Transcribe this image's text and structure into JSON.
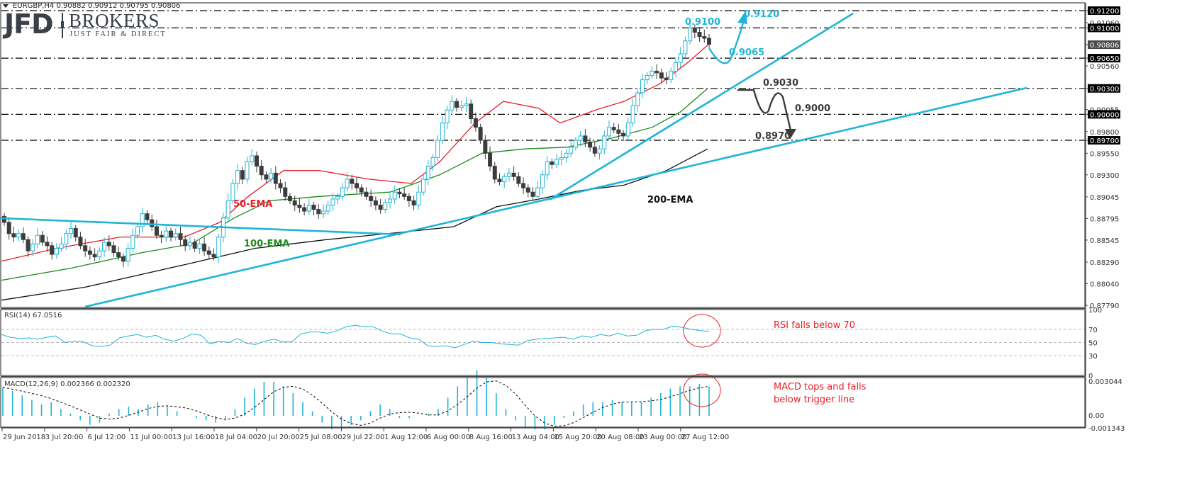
{
  "header": {
    "symbol": "EURGBP,H4",
    "ohlc": "0.90882 0.90912 0.90795 0.90806",
    "full_text": "EURGBP,H4  0.90882 0.90912 0.90795 0.90806"
  },
  "logo": {
    "brand": "JFD",
    "name": "BROKERS",
    "tagline": "JUST FAIR & DIRECT"
  },
  "colors": {
    "bull": "#1fb5d6",
    "bear": "#3c3c3c",
    "trendline": "#1fb5d6",
    "ema50": "#e8202a",
    "ema100": "#1a8a1a",
    "ema200": "#111111",
    "level_line": "#000000",
    "note_red": "#e8202a",
    "projection_dark": "#3c3c3c",
    "projection_blue": "#1fb5d6",
    "axis_tag_bg": "#000000",
    "current_price_tag_bg": "#4a4a4a",
    "rsi_line": "#1fb5d6",
    "macd_hist": "#1fb5d6",
    "macd_signal": "#000000"
  },
  "annotations": {
    "level_9100": "0.9100",
    "level_9120": "0.9120",
    "level_9065": "0.9065",
    "level_9030": "0.9030",
    "level_9000": "0.9000",
    "level_8970": "0.8970",
    "ema50_label": "50-EMA",
    "ema100_label": "100-EMA",
    "ema200_label": "200-EMA",
    "rsi_note": "RSI falls below 70",
    "macd_note_line1": "MACD tops and falls",
    "macd_note_line2": "below trigger line"
  },
  "chart_data": [
    {
      "type": "candlestick",
      "title": "EURGBP,H4",
      "ohlc_last": {
        "open": 0.90882,
        "high": 0.90912,
        "low": 0.90795,
        "close": 0.90806
      },
      "y_axis": {
        "ticks": [
          0.912,
          0.9106,
          0.91,
          0.90806,
          0.9065,
          0.9056,
          0.903,
          0.90055,
          0.9,
          0.898,
          0.897,
          0.8955,
          0.893,
          0.89045,
          0.88795,
          0.88545,
          0.8829,
          0.8804,
          0.8779
        ],
        "highlighted_ticks": [
          0.912,
          0.91,
          0.9065,
          0.903,
          0.9,
          0.897
        ],
        "current_price_tag": 0.90806,
        "range": [
          0.8779,
          0.9125
        ]
      },
      "x_axis": {
        "ticks": [
          "29 Jun 2018",
          "3 Jul 20:00",
          "6 Jul 12:00",
          "11 Jul 00:00",
          "13 Jul 16:00",
          "18 Jul 04:00",
          "20 Jul 20:00",
          "25 Jul 08:00",
          "29 Jul 22:00",
          "1 Aug 12:00",
          "6 Aug 00:00",
          "8 Aug 16:00",
          "13 Aug 04:00",
          "15 Aug 20:00",
          "20 Aug 08:00",
          "23 Aug 00:00",
          "27 Aug 12:00"
        ]
      },
      "horizontal_levels": [
        0.912,
        0.91,
        0.9065,
        0.903,
        0.9,
        0.897
      ],
      "indicators": [
        "50-EMA",
        "100-EMA",
        "200-EMA"
      ],
      "approx_close_path": [
        0.8875,
        0.8862,
        0.8858,
        0.8862,
        0.8855,
        0.8842,
        0.885,
        0.886,
        0.8852,
        0.8848,
        0.8838,
        0.8845,
        0.885,
        0.8862,
        0.8868,
        0.8858,
        0.8848,
        0.8842,
        0.8838,
        0.8835,
        0.8842,
        0.8852,
        0.8848,
        0.884,
        0.8835,
        0.883,
        0.8845,
        0.886,
        0.887,
        0.8885,
        0.8878,
        0.887,
        0.886,
        0.8858,
        0.8865,
        0.8858,
        0.8862,
        0.8855,
        0.8848,
        0.8852,
        0.8845,
        0.885,
        0.8842,
        0.8838,
        0.8835,
        0.8858,
        0.888,
        0.89,
        0.892,
        0.8935,
        0.8925,
        0.8945,
        0.8952,
        0.894,
        0.893,
        0.8925,
        0.8932,
        0.892,
        0.8915,
        0.8905,
        0.89,
        0.8895,
        0.8892,
        0.8888,
        0.8895,
        0.889,
        0.8885,
        0.8888,
        0.8895,
        0.8902,
        0.8905,
        0.8915,
        0.8925,
        0.892,
        0.8915,
        0.891,
        0.8905,
        0.89,
        0.8895,
        0.889,
        0.8898,
        0.8902,
        0.891,
        0.8908,
        0.8905,
        0.89,
        0.8895,
        0.891,
        0.8925,
        0.894,
        0.895,
        0.897,
        0.899,
        0.9005,
        0.9015,
        0.9008,
        0.901,
        0.9012,
        0.8995,
        0.8985,
        0.897,
        0.8955,
        0.894,
        0.8925,
        0.8922,
        0.8928,
        0.8932,
        0.8928,
        0.892,
        0.8915,
        0.891,
        0.8905,
        0.8915,
        0.893,
        0.8945,
        0.8942,
        0.8948,
        0.895,
        0.8955,
        0.8962,
        0.897,
        0.8975,
        0.8968,
        0.8962,
        0.8955,
        0.896,
        0.8975,
        0.8985,
        0.8982,
        0.8978,
        0.8975,
        0.899,
        0.901,
        0.9025,
        0.904,
        0.9045,
        0.905,
        0.9048,
        0.9042,
        0.904,
        0.905,
        0.906,
        0.907,
        0.9085,
        0.91,
        0.9095,
        0.909,
        0.9088,
        0.9081
      ]
    },
    {
      "type": "line",
      "title": "RSI(14) 67.0516",
      "value": 67.0516,
      "y_axis": {
        "ticks": [
          100,
          70,
          50,
          30,
          0
        ],
        "range": [
          0,
          100
        ]
      },
      "reference_lines": [
        70,
        50,
        30
      ],
      "approx_values": [
        62,
        58,
        56,
        57,
        55,
        58,
        60,
        50,
        52,
        51,
        45,
        44,
        46,
        57,
        60,
        62,
        58,
        61,
        55,
        52,
        56,
        63,
        61,
        48,
        52,
        50,
        56,
        49,
        47,
        52,
        55,
        51,
        51,
        63,
        66,
        66,
        64,
        68,
        74,
        76,
        74,
        74,
        67,
        63,
        63,
        57,
        55,
        45,
        44,
        45,
        42,
        47,
        52,
        50,
        50,
        48,
        47,
        46,
        53,
        55,
        56,
        57,
        58,
        55,
        60,
        58,
        62,
        60,
        64,
        60,
        61,
        68,
        70,
        70,
        75,
        73,
        70,
        68,
        67
      ]
    },
    {
      "type": "bar",
      "title": "MACD(12,26,9) 0.002366 0.002320",
      "macd": 0.002366,
      "signal": 0.00232,
      "y_axis": {
        "ticks": [
          0.003044,
          0.0,
          -0.001343
        ],
        "range": [
          -0.001343,
          0.003044
        ]
      },
      "approx_histogram": [
        0.0025,
        0.0022,
        0.0018,
        0.0014,
        0.001,
        0.0012,
        0.0006,
        0.0002,
        -0.0004,
        -0.0008,
        -0.0006,
        0.0002,
        0.0006,
        0.0008,
        0.0006,
        0.001,
        0.0012,
        0.0008,
        0.0004,
        0.0,
        -0.0002,
        -0.0004,
        -0.0006,
        -0.0004,
        0.0006,
        0.0016,
        0.0024,
        0.003,
        0.003,
        0.0026,
        0.002,
        0.0012,
        0.0004,
        -0.0006,
        -0.0012,
        -0.0012,
        -0.0008,
        -0.0004,
        0.0004,
        0.001,
        0.0006,
        -0.0002,
        -0.0002,
        0.0,
        0.0002,
        0.0006,
        0.0016,
        0.0026,
        0.0034,
        0.004,
        0.0034,
        0.002,
        0.0006,
        -0.0004,
        -0.001,
        -0.0012,
        -0.0012,
        -0.0008,
        -0.0002,
        0.0004,
        0.001,
        0.0012,
        0.0012,
        0.0014,
        0.0012,
        0.0012,
        0.0012,
        0.0016,
        0.002,
        0.0024,
        0.0026,
        0.0026,
        0.0028,
        0.0026
      ]
    }
  ]
}
